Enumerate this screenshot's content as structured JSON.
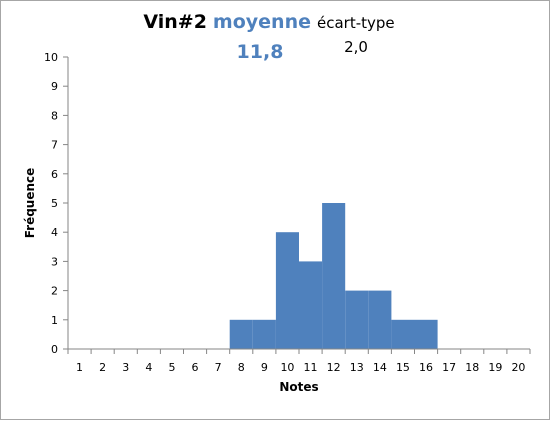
{
  "chart_data": {
    "type": "bar",
    "title": {
      "name": "Vin#2",
      "mean_label": "moyenne",
      "sd_label": "écart-type",
      "mean_value": "11,8",
      "sd_value": "2,0"
    },
    "xlabel": "Notes",
    "ylabel": "Fréquence",
    "categories": [
      "1",
      "2",
      "3",
      "4",
      "5",
      "6",
      "7",
      "8",
      "9",
      "10",
      "11",
      "12",
      "13",
      "14",
      "15",
      "16",
      "17",
      "18",
      "19",
      "20"
    ],
    "values": [
      0,
      0,
      0,
      0,
      0,
      0,
      0,
      1,
      1,
      4,
      3,
      5,
      2,
      2,
      1,
      1,
      0,
      0,
      0,
      0
    ],
    "ylim": [
      0,
      10
    ],
    "yticks": [
      "0",
      "1",
      "2",
      "3",
      "4",
      "5",
      "6",
      "7",
      "8",
      "9",
      "10"
    ],
    "grid": false,
    "legend": "none",
    "colors": {
      "bar": "#4f81bd",
      "accent": "#4f81bd",
      "axis": "#868686"
    }
  }
}
